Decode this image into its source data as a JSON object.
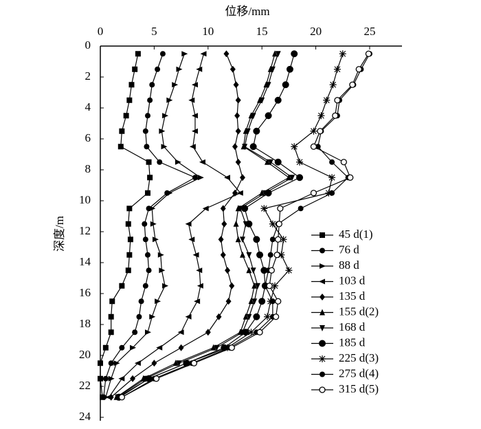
{
  "chart_data": {
    "type": "line",
    "x_label": "位移/mm",
    "y_label": "深度/m",
    "xlim": [
      0,
      28
    ],
    "xticks": [
      0,
      5,
      10,
      15,
      20,
      25
    ],
    "ylim": [
      0,
      24
    ],
    "yticks": [
      0,
      2,
      4,
      6,
      8,
      10,
      12,
      14,
      16,
      18,
      20,
      22,
      24
    ],
    "y_inverted": true,
    "x_axis_position": "top",
    "grid": false,
    "legend_position": "lower right",
    "y": [
      0.5,
      1.5,
      2.5,
      3.5,
      4.5,
      5.5,
      6.5,
      7.5,
      8.5,
      9.5,
      10.5,
      11.5,
      12.5,
      13.5,
      14.5,
      15.5,
      16.5,
      17.5,
      18.5,
      19.5,
      20.5,
      21.5,
      22.7
    ],
    "series": [
      {
        "name": "45 d(1)",
        "color": "#000000",
        "marker": "square",
        "values": [
          3.5,
          3.2,
          2.9,
          2.7,
          2.4,
          2.0,
          1.9,
          4.5,
          4.6,
          4.4,
          2.7,
          2.6,
          2.8,
          2.7,
          2.6,
          2.0,
          1.1,
          1.0,
          1.0,
          0.5,
          0,
          0,
          0.2
        ]
      },
      {
        "name": "76 d",
        "color": "#000000",
        "marker": "circle",
        "values": [
          5.8,
          5.3,
          4.8,
          4.6,
          4.4,
          4.2,
          4.3,
          5.5,
          8.8,
          6.2,
          4.5,
          4.1,
          4.2,
          4.4,
          4.5,
          4.2,
          3.8,
          3.6,
          3.2,
          2.0,
          1.0,
          0.5,
          0.3
        ]
      },
      {
        "name": "88 d",
        "color": "#000000",
        "marker": "triangle-right",
        "values": [
          7.8,
          7.3,
          6.9,
          6.4,
          6.0,
          5.7,
          5.9,
          7.2,
          9.3,
          6.4,
          4.8,
          4.9,
          5.1,
          5.6,
          5.7,
          6.0,
          5.3,
          4.8,
          4.4,
          3.0,
          1.5,
          1.0,
          0.5
        ]
      },
      {
        "name": "103 d",
        "color": "#000000",
        "marker": "triangle-left",
        "values": [
          9.6,
          9.2,
          8.8,
          8.5,
          8.8,
          8.8,
          8.6,
          9.5,
          11.8,
          13.0,
          9.8,
          8.2,
          8.5,
          8.9,
          9.2,
          9.3,
          9.0,
          8.2,
          7.5,
          5.5,
          3.5,
          2.0,
          0.8
        ]
      },
      {
        "name": "135 d",
        "color": "#000000",
        "marker": "diamond",
        "values": [
          11.7,
          12.3,
          12.6,
          12.8,
          12.7,
          12.8,
          12.5,
          12.8,
          13.2,
          12.5,
          11.4,
          11.5,
          11.2,
          11.4,
          11.8,
          12.2,
          11.9,
          11.0,
          10.0,
          7.5,
          5.0,
          3.0,
          1.0
        ]
      },
      {
        "name": "155 d(2)",
        "color": "#000000",
        "marker": "triangle-up",
        "values": [
          16.2,
          15.8,
          15.4,
          14.8,
          14.0,
          13.5,
          13.3,
          15.5,
          17.5,
          15.0,
          12.8,
          12.6,
          12.8,
          13.2,
          13.8,
          14.3,
          14.0,
          13.5,
          13.0,
          10.5,
          7.0,
          4.0,
          1.5
        ]
      },
      {
        "name": "168 d",
        "color": "#000000",
        "marker": "triangle-down",
        "values": [
          16.5,
          16.0,
          15.6,
          15.0,
          14.2,
          13.7,
          13.4,
          15.8,
          17.8,
          15.3,
          13.0,
          13.5,
          13.2,
          13.8,
          14.2,
          14.6,
          14.3,
          13.8,
          13.2,
          10.8,
          7.3,
          4.2,
          1.6
        ]
      },
      {
        "name": "185 d",
        "color": "#000000",
        "marker": "big-circle",
        "values": [
          18.0,
          17.6,
          17.2,
          16.5,
          15.6,
          14.5,
          14.2,
          16.5,
          18.5,
          15.6,
          13.4,
          13.8,
          14.5,
          14.8,
          15.2,
          15.3,
          15.0,
          14.5,
          13.5,
          11.5,
          8.0,
          4.5,
          1.7
        ]
      },
      {
        "name": "225 d(3)",
        "color": "#000000",
        "marker": "star",
        "values": [
          22.5,
          22.0,
          21.6,
          21.0,
          20.5,
          19.8,
          18.0,
          18.5,
          21.5,
          21.2,
          15.2,
          16.0,
          17.0,
          16.8,
          17.5,
          16.2,
          15.8,
          15.5,
          14.0,
          11.8,
          8.0,
          4.5,
          1.8
        ]
      },
      {
        "name": "275 d(4)",
        "color": "#000000",
        "marker": "circle",
        "values": [
          25.0,
          24.2,
          23.5,
          22.2,
          22.0,
          20.5,
          20.2,
          21.5,
          23.0,
          21.5,
          18.6,
          16.5,
          16.0,
          15.8,
          15.6,
          15.3,
          16.0,
          16.0,
          14.5,
          12.0,
          8.5,
          5.0,
          2.0
        ]
      },
      {
        "name": "315 d(5)",
        "color": "#000000",
        "marker": "open-circle",
        "values": [
          24.9,
          24.0,
          23.4,
          22.0,
          21.8,
          20.4,
          19.8,
          22.6,
          23.2,
          19.8,
          16.7,
          16.6,
          16.5,
          16.4,
          15.9,
          15.7,
          16.5,
          16.3,
          14.8,
          12.2,
          8.7,
          5.2,
          2.0
        ]
      }
    ]
  }
}
